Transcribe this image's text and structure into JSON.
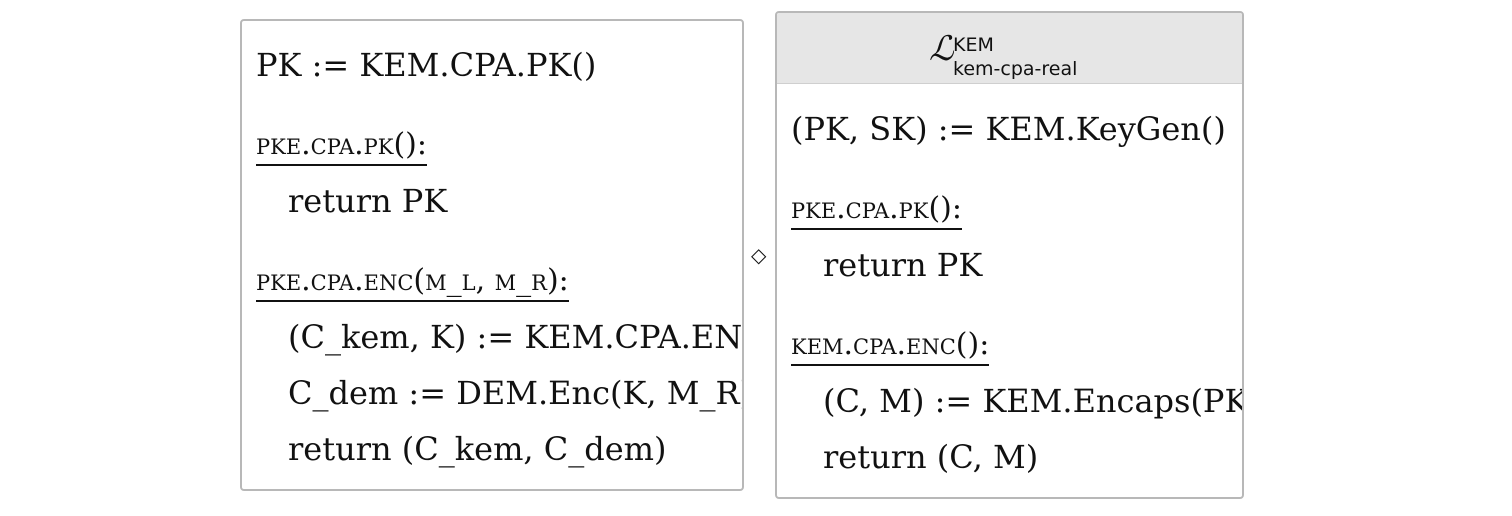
{
  "left": {
    "line1": "PK := KEM.CPA.PK()",
    "header1": "PKE.CPA.PK():",
    "body1": "return PK",
    "header2": "PKE.CPA.ENC(M_L, M_R):",
    "body2a": "(C_kem, K) := KEM.CPA.ENC()",
    "body2b": "C_dem := DEM.Enc(K, M_R)",
    "body2c": "return (C_kem, C_dem)"
  },
  "compose_symbol": "◇",
  "right": {
    "title_base": "ℒ",
    "title_sup": "KEM",
    "title_sub": "kem-cpa-real",
    "line1": "(PK, SK) := KEM.KeyGen()",
    "header1": "PKE.CPA.PK():",
    "body1": "return PK",
    "header2": "KEM.CPA.ENC():",
    "body2a": "(C, M) := KEM.Encaps(PK)",
    "body2b": "return (C, M)"
  }
}
